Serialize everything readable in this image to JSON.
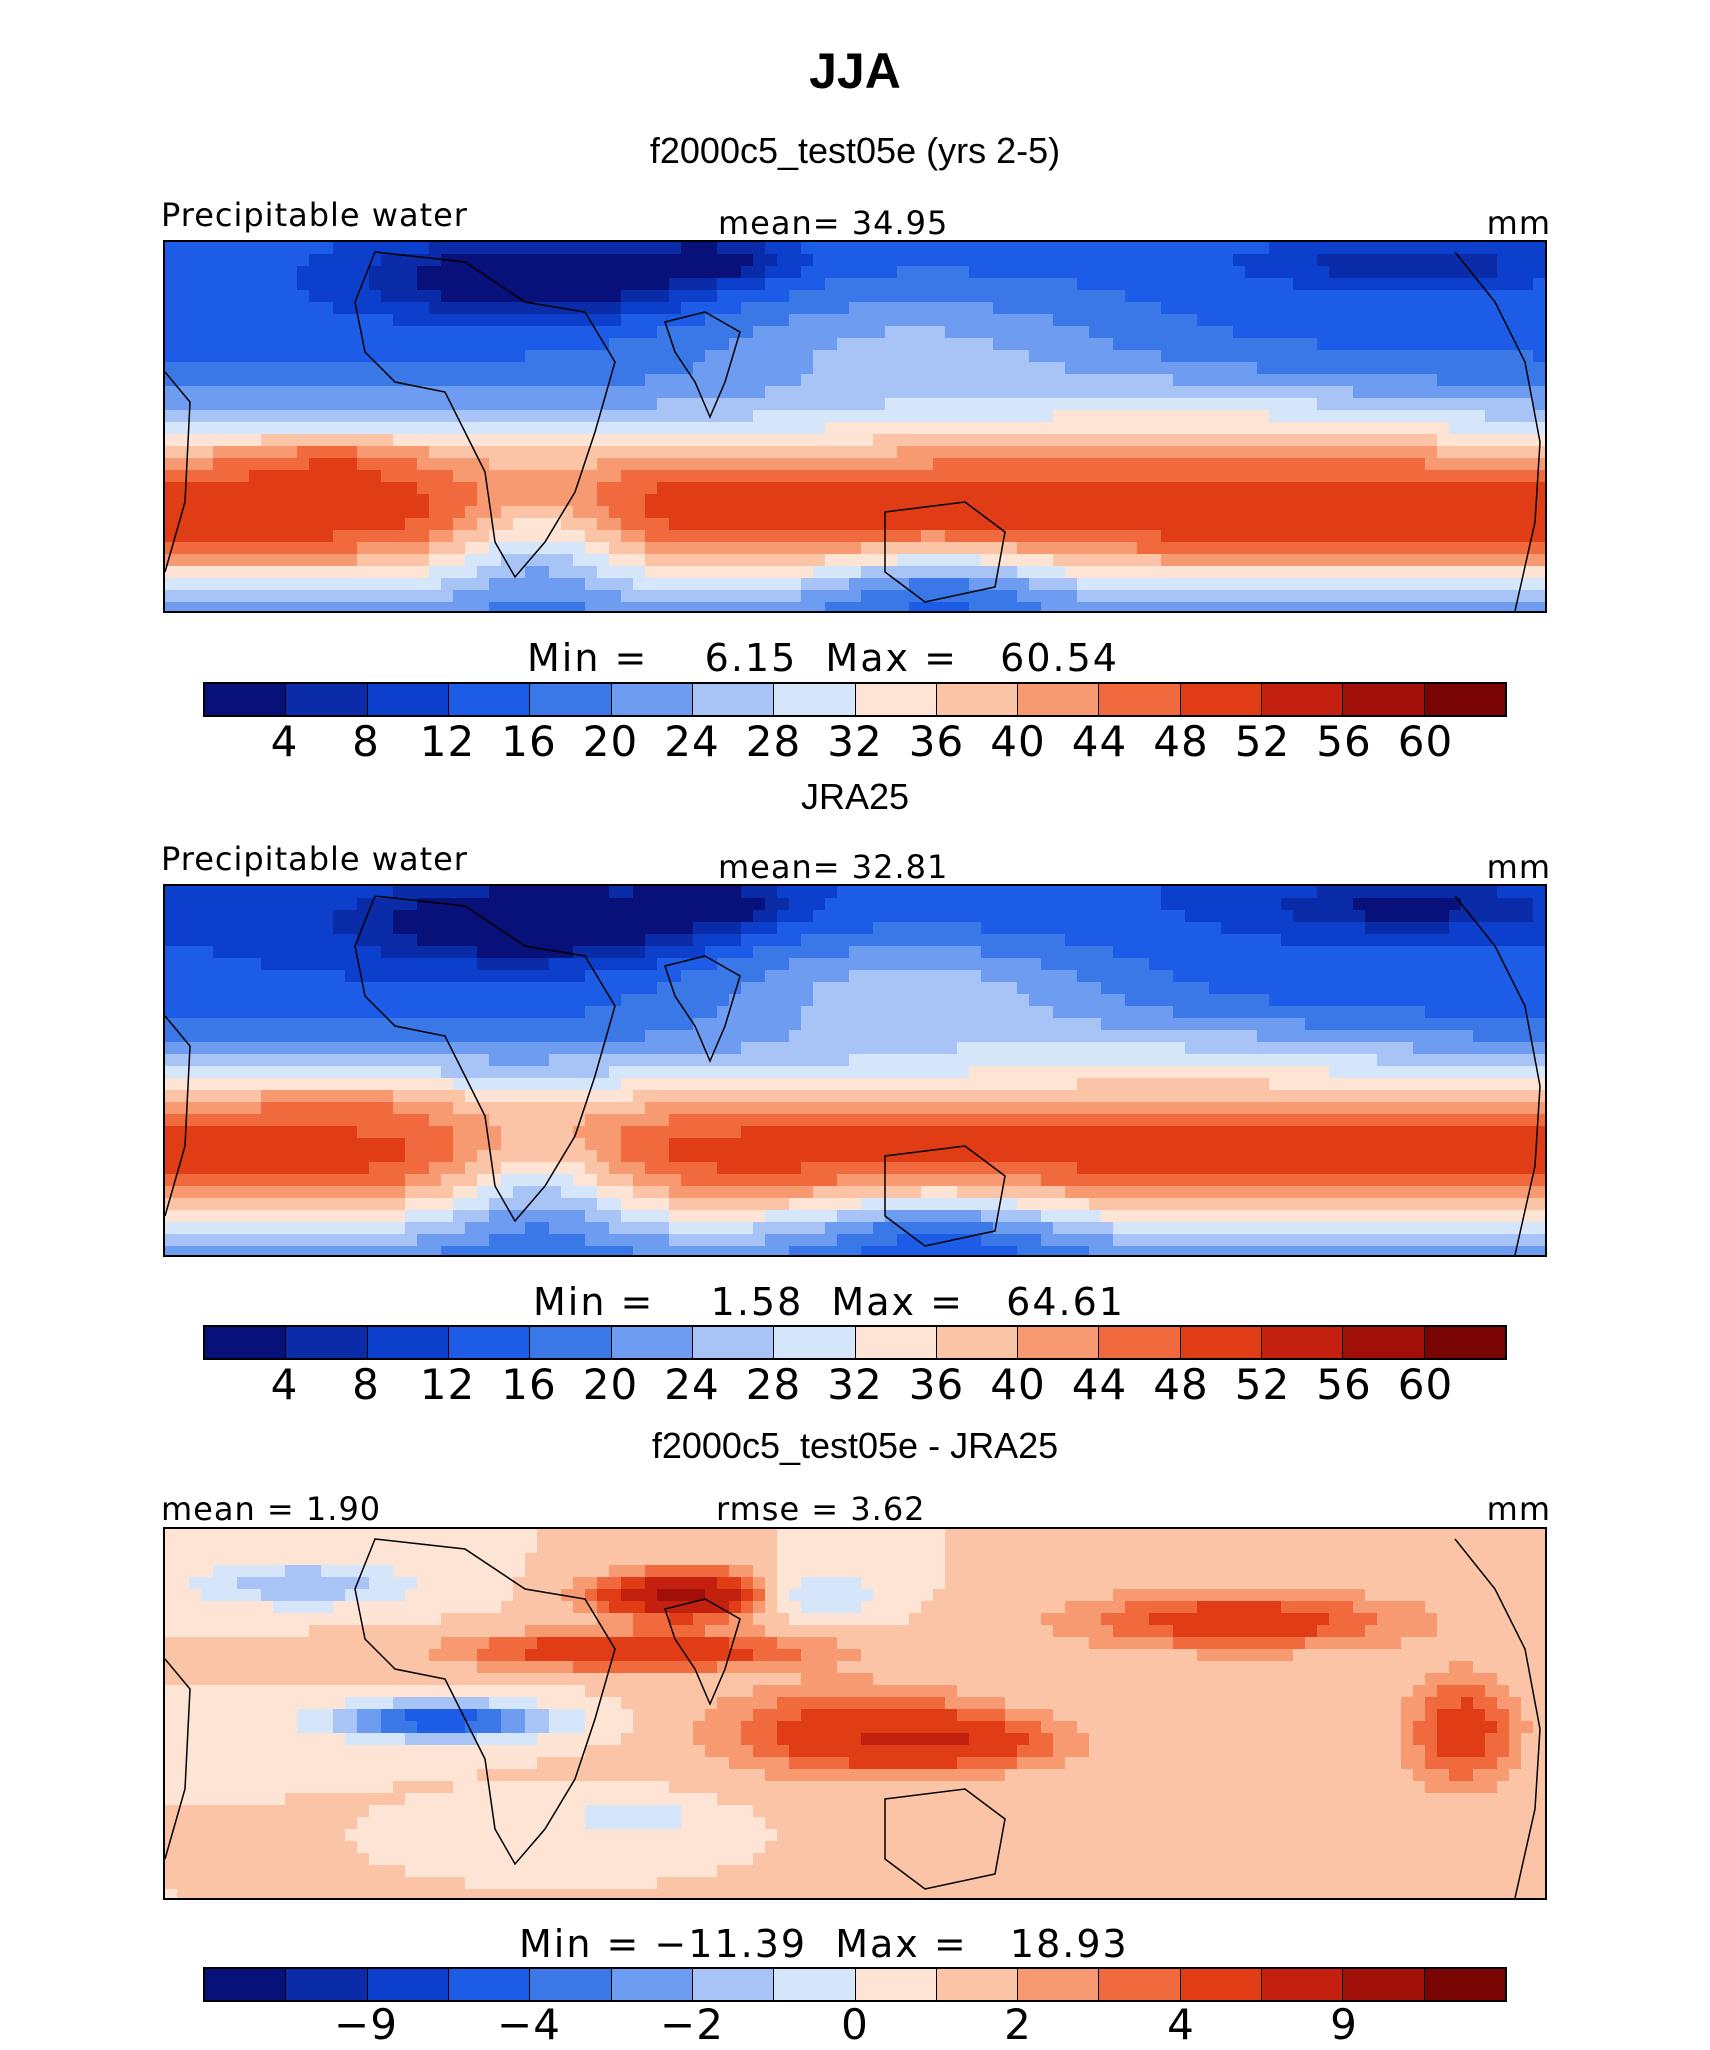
{
  "title": "JJA",
  "panels": [
    {
      "subtitle": "f2000c5_test05e (yrs 2-5)",
      "left_label": "Precipitable water",
      "center_label": "mean=   34.95",
      "right_label": "mm",
      "stats": "Min =    6.15  Max =   60.54",
      "field": "model",
      "colorbar": [
        "4",
        "8",
        "12",
        "16",
        "20",
        "24",
        "28",
        "32",
        "36",
        "40",
        "44",
        "48",
        "52",
        "56",
        "60"
      ]
    },
    {
      "subtitle": "JRA25",
      "left_label": "Precipitable water",
      "center_label": "mean=   32.81",
      "right_label": "mm",
      "stats": "Min =    1.58  Max =   64.61",
      "field": "obs",
      "colorbar": [
        "4",
        "8",
        "12",
        "16",
        "20",
        "24",
        "28",
        "32",
        "36",
        "40",
        "44",
        "48",
        "52",
        "56",
        "60"
      ]
    },
    {
      "subtitle": "f2000c5_test05e - JRA25",
      "left_label": "mean =    1.90",
      "center_label": "rmse =    3.62",
      "right_label": "mm",
      "stats": "Min = −11.39  Max =   18.93",
      "field": "diff",
      "colorbar": [
        "−9",
        "−4",
        "−2",
        "0",
        "2",
        "4",
        "9"
      ]
    }
  ],
  "colors": [
    "#08107a",
    "#0a2ca8",
    "#0c40cc",
    "#1c5ce6",
    "#3a78e8",
    "#6e9cf0",
    "#a8c4f6",
    "#d6e6fa",
    "#fde4d4",
    "#fbc4a6",
    "#f79a72",
    "#f06a3e",
    "#e03c16",
    "#c42010",
    "#a01008",
    "#780404"
  ]
}
